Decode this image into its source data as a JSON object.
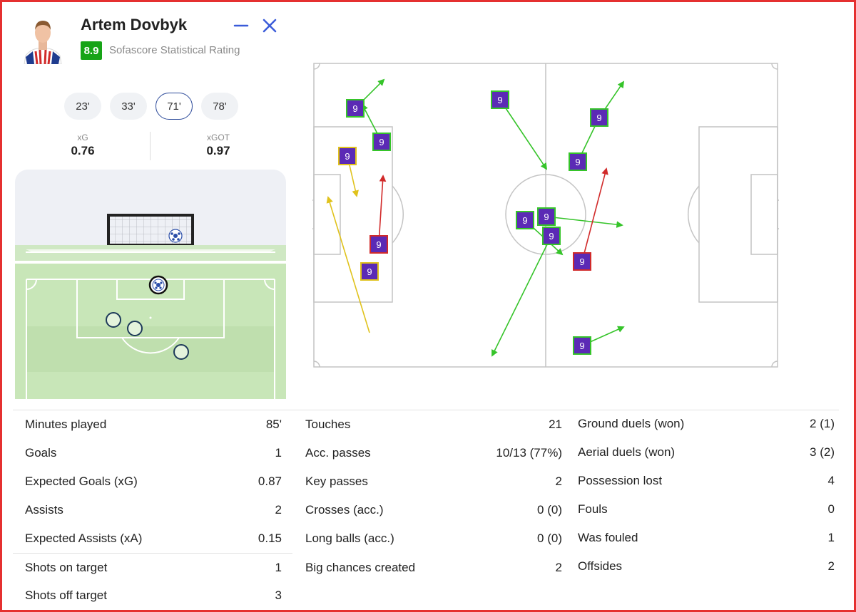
{
  "header": {
    "player_name": "Artem Dovbyk",
    "rating": "8.9",
    "rating_label": "Sofascore Statistical Rating",
    "colors": {
      "rating_green": "#17a417",
      "icon_blue": "#3a5bd9"
    }
  },
  "minutes": [
    "23'",
    "33'",
    "71'",
    "78'"
  ],
  "selected_minute": "71'",
  "xg": {
    "label": "xG",
    "value": "0.76"
  },
  "xgot": {
    "label": "xGOT",
    "value": "0.97"
  },
  "stats": {
    "col1": [
      {
        "label": "Minutes played",
        "value": "85'"
      },
      {
        "label": "Goals",
        "value": "1"
      },
      {
        "label": "Expected Goals (xG)",
        "value": "0.87"
      },
      {
        "label": "Assists",
        "value": "2"
      },
      {
        "label": "Expected Assists (xA)",
        "value": "0.15"
      },
      {
        "label": "Shots on target",
        "value": "1"
      },
      {
        "label": "Shots off target",
        "value": "3"
      }
    ],
    "col2": [
      {
        "label": "Touches",
        "value": "21"
      },
      {
        "label": "Acc. passes",
        "value": "10/13 (77%)"
      },
      {
        "label": "Key passes",
        "value": "2"
      },
      {
        "label": "Crosses (acc.)",
        "value": "0 (0)"
      },
      {
        "label": "Long balls (acc.)",
        "value": "0 (0)"
      },
      {
        "label": "Big chances created",
        "value": "2"
      }
    ],
    "col3": [
      {
        "label": "Ground duels (won)",
        "value": "2 (1)"
      },
      {
        "label": "Aerial duels (won)",
        "value": "3 (2)"
      },
      {
        "label": "Possession lost",
        "value": "4"
      },
      {
        "label": "Fouls",
        "value": "0"
      },
      {
        "label": "Was fouled",
        "value": "1"
      },
      {
        "label": "Offsides",
        "value": "2"
      }
    ]
  },
  "pass_map": {
    "marker_label": "9",
    "colors": {
      "accurate": "#36c42a",
      "key_pass": "#e0c21c",
      "lost": "#d12a2a",
      "marker_fill": "#5b2ab5"
    }
  }
}
